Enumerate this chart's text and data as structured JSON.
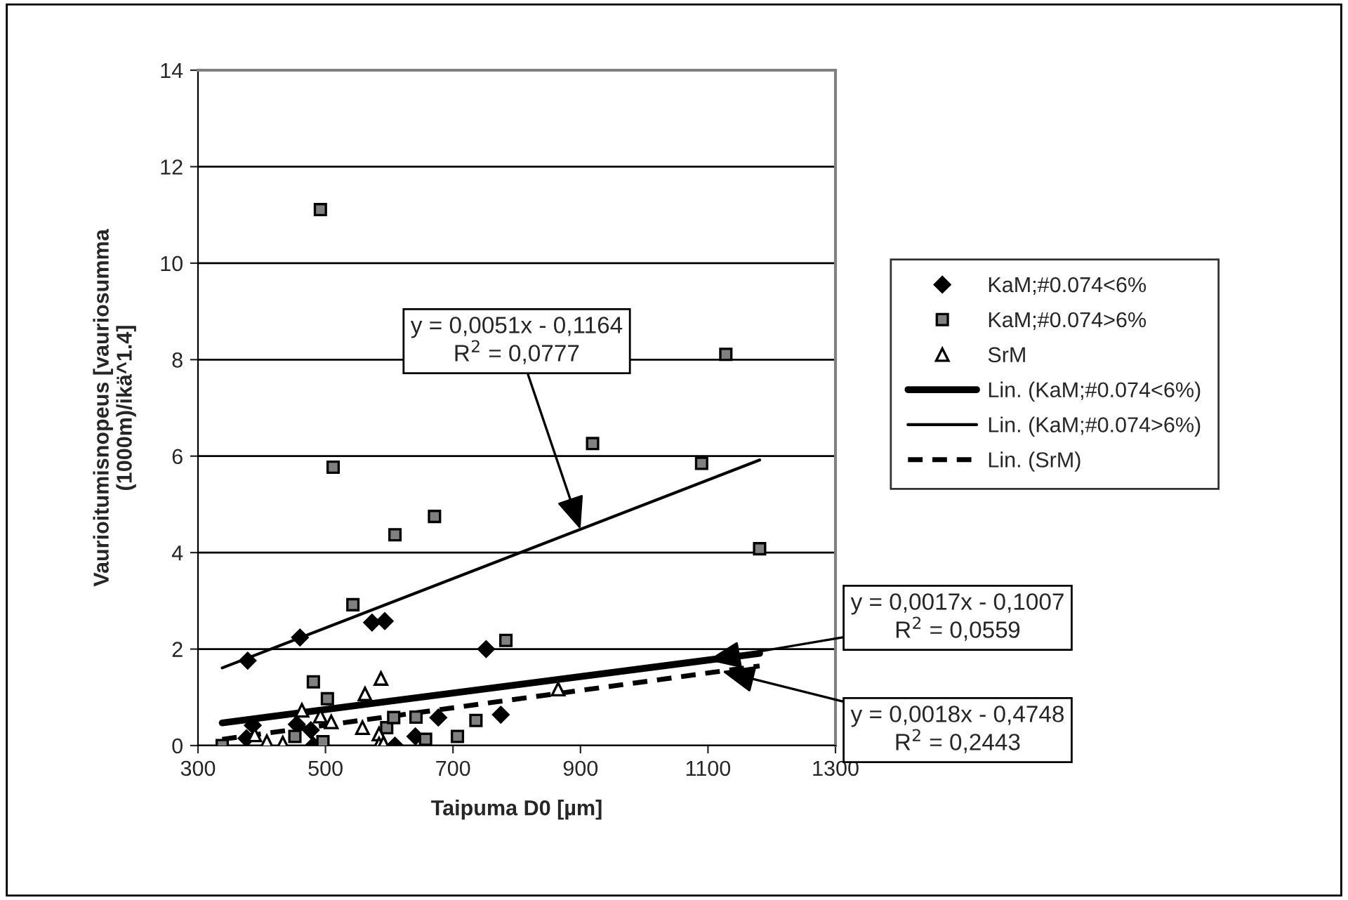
{
  "chart_data": {
    "type": "scatter",
    "xlabel": "Taipuma D0 [µm]",
    "ylabel": "Vaurioitumisnopeus [vauriosumma\n(1000m)/ikä^1.4]",
    "xlim": [
      300,
      1300
    ],
    "xticks": [
      300,
      500,
      700,
      900,
      1100,
      1300
    ],
    "ylim": [
      0,
      14
    ],
    "yticks": [
      0,
      2,
      4,
      6,
      8,
      10,
      12,
      14
    ],
    "grid": "y",
    "legend": "right",
    "series": [
      {
        "name": "KaM;#0.074<6%",
        "marker": "diamond",
        "color": "#000000",
        "x": [
          378,
          460,
          573,
          593,
          752,
          775,
          677,
          641,
          609,
          481,
          376,
          386,
          455,
          477
        ],
        "values": [
          1.76,
          2.24,
          2.55,
          2.58,
          2.0,
          0.64,
          0.58,
          0.19,
          0.0,
          0.0,
          0.15,
          0.42,
          0.44,
          0.32
        ]
      },
      {
        "name": "KaM;#0.074>6%",
        "marker": "square",
        "color": "#808080",
        "x": [
          492,
          512,
          609,
          671,
          919,
          1090,
          1128,
          1181,
          543,
          783,
          481,
          503,
          338,
          452,
          496,
          596,
          607,
          642,
          657,
          707,
          736
        ],
        "values": [
          11.11,
          5.77,
          4.37,
          4.75,
          6.26,
          5.85,
          8.11,
          4.08,
          2.92,
          2.18,
          1.32,
          0.97,
          0.0,
          0.19,
          0.08,
          0.37,
          0.58,
          0.59,
          0.13,
          0.19,
          0.52
        ]
      },
      {
        "name": "SrM",
        "marker": "triangle",
        "color": "#ffffff",
        "x": [
          587,
          562,
          865,
          463,
          509,
          558,
          584,
          584,
          433,
          408,
          389,
          492,
          591
        ],
        "values": [
          1.39,
          1.07,
          1.17,
          0.73,
          0.49,
          0.37,
          0.24,
          0.03,
          0.05,
          0.08,
          0.22,
          0.61,
          0.05
        ]
      },
      {
        "name": "Lin. (KaM;#0.074<6%)",
        "type": "line",
        "line_style": "solid",
        "color": "#000000",
        "x": [
          338,
          1181
        ],
        "values": [
          0.47,
          1.91
        ]
      },
      {
        "name": "Lin. (KaM;#0.074>6%)",
        "type": "line",
        "line_style": "solid",
        "color": "#000000",
        "x": [
          338,
          1181
        ],
        "values": [
          1.61,
          5.92
        ]
      },
      {
        "name": "Lin. (SrM)",
        "type": "line",
        "line_style": "dashed",
        "color": "#000000",
        "x": [
          338,
          1181
        ],
        "values": [
          0.13,
          1.65
        ]
      }
    ],
    "annotations": [
      {
        "text": "y = 0,0051x - 0,1164\nR$^{2}$ = 0,0777",
        "x": 900,
        "y": 4.48
      },
      {
        "text": "y = 0,0017x - 0,1007\nR$^{2}$ = 0,0559",
        "x": 1100,
        "y": 1.77
      },
      {
        "text": "y = 0,0018x - 0,4748\nR$^{2}$ = 0,2443",
        "x": 1122,
        "y": 1.54
      }
    ]
  }
}
